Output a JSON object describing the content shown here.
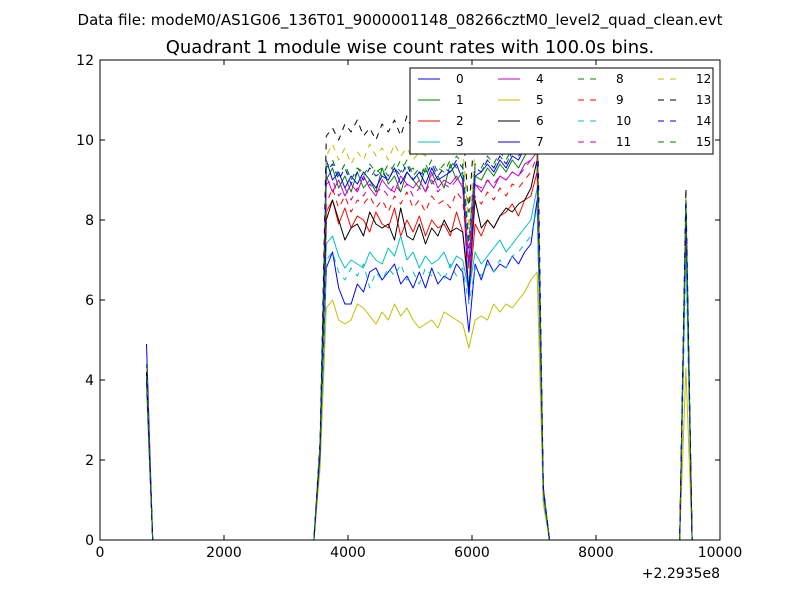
{
  "chart_data": {
    "type": "line",
    "suptitle": "Data file: modeM0/AS1G06_136T01_9000001148_08266cztM0_level2_quad_clean.evt",
    "title": "Quadrant 1 module wise count rates with 100.0s bins.",
    "xlabel": "",
    "ylabel": "",
    "x_offset_label": "+2.2935e8",
    "xlim": [
      0,
      10000
    ],
    "ylim": [
      0,
      12
    ],
    "xticks": [
      0,
      2000,
      4000,
      6000,
      8000,
      10000
    ],
    "yticks": [
      0,
      2,
      4,
      6,
      8,
      10,
      12
    ],
    "grid": false,
    "legend_position": "top-right",
    "legend_columns": 4,
    "x": [
      750,
      850,
      950,
      1050,
      3450,
      3550,
      3650,
      3750,
      3850,
      3950,
      4050,
      4150,
      4250,
      4350,
      4450,
      4550,
      4650,
      4750,
      4850,
      4950,
      5050,
      5150,
      5250,
      5350,
      5450,
      5550,
      5650,
      5750,
      5850,
      5950,
      6050,
      6150,
      6250,
      6350,
      6450,
      6550,
      6650,
      6750,
      6850,
      6950,
      7050,
      7150,
      7250,
      7350,
      9350,
      9450,
      9550
    ],
    "series": [
      {
        "name": "0",
        "color": "#0000ff",
        "dash": false,
        "values": [
          4.9,
          0,
          0,
          0,
          0,
          2.0,
          6.8,
          7.2,
          6.3,
          5.9,
          5.9,
          6.4,
          6.2,
          6.7,
          6.8,
          6.5,
          6.7,
          6.9,
          6.4,
          6.6,
          6.3,
          6.7,
          6.3,
          6.8,
          6.4,
          6.6,
          6.5,
          6.9,
          6.7,
          5.2,
          6.9,
          6.5,
          7.0,
          6.7,
          6.9,
          6.8,
          7.1,
          6.9,
          7.2,
          7.4,
          8.5,
          1.3,
          0,
          0,
          0,
          8.0,
          0
        ]
      },
      {
        "name": "1",
        "color": "#008000",
        "dash": false,
        "values": [
          4.4,
          0,
          0,
          0,
          0,
          2.3,
          9.0,
          9.3,
          8.8,
          9.1,
          8.7,
          9.2,
          8.8,
          9.0,
          8.7,
          9.3,
          8.9,
          9.1,
          8.7,
          9.2,
          9.0,
          8.8,
          9.3,
          8.9,
          9.1,
          8.8,
          9.4,
          9.0,
          9.2,
          6.8,
          9.1,
          9.0,
          9.3,
          9.1,
          9.4,
          9.2,
          9.5,
          9.3,
          9.6,
          9.8,
          10.0,
          1.2,
          0,
          0,
          0,
          8.3,
          0
        ]
      },
      {
        "name": "2",
        "color": "#ff0000",
        "dash": false,
        "values": [
          4.2,
          0,
          0,
          0,
          0,
          2.2,
          8.2,
          8.5,
          7.9,
          8.3,
          7.8,
          8.1,
          8.0,
          7.7,
          8.2,
          7.9,
          7.8,
          8.3,
          7.6,
          8.0,
          7.7,
          8.1,
          7.6,
          8.0,
          7.8,
          7.9,
          7.6,
          8.2,
          7.7,
          6.1,
          7.9,
          7.6,
          8.0,
          7.8,
          8.1,
          8.2,
          8.4,
          8.1,
          8.5,
          8.6,
          9.2,
          1.2,
          0,
          0,
          0,
          8.1,
          0
        ]
      },
      {
        "name": "3",
        "color": "#00bfbf",
        "dash": false,
        "values": [
          4.0,
          0,
          0,
          0,
          0,
          2.1,
          7.4,
          7.6,
          7.1,
          6.8,
          7.0,
          6.9,
          6.8,
          7.2,
          7.0,
          6.9,
          7.3,
          7.1,
          7.6,
          7.0,
          7.2,
          6.8,
          7.1,
          6.9,
          7.0,
          7.2,
          6.8,
          7.1,
          7.0,
          6.2,
          7.2,
          6.9,
          7.1,
          7.3,
          7.5,
          7.2,
          7.4,
          7.6,
          7.8,
          8.0,
          8.8,
          1.1,
          0,
          0,
          0,
          7.6,
          0
        ]
      },
      {
        "name": "4",
        "color": "#bf00bf",
        "dash": false,
        "values": [
          4.3,
          0,
          0,
          0,
          0,
          2.2,
          9.1,
          8.7,
          9.0,
          8.6,
          8.9,
          8.7,
          9.1,
          8.8,
          8.6,
          9.0,
          8.8,
          8.7,
          9.1,
          8.9,
          8.8,
          9.0,
          8.7,
          9.2,
          8.8,
          9.0,
          8.9,
          9.1,
          8.8,
          6.9,
          8.9,
          8.7,
          9.0,
          8.8,
          9.1,
          9.0,
          9.2,
          9.1,
          9.4,
          9.5,
          9.7,
          1.2,
          0,
          0,
          0,
          8.2,
          0
        ]
      },
      {
        "name": "5",
        "color": "#bfbf00",
        "dash": false,
        "values": [
          3.8,
          0,
          0,
          0,
          0,
          1.8,
          5.8,
          6.0,
          5.5,
          5.4,
          5.5,
          5.9,
          5.8,
          5.6,
          5.4,
          5.7,
          5.5,
          5.9,
          5.6,
          5.8,
          5.5,
          5.3,
          5.4,
          5.5,
          5.3,
          5.7,
          5.6,
          5.5,
          5.4,
          4.8,
          5.5,
          5.6,
          5.5,
          5.9,
          5.7,
          5.9,
          5.8,
          6.0,
          6.2,
          6.5,
          6.7,
          0.9,
          0,
          0,
          0,
          4.3,
          0
        ]
      },
      {
        "name": "6",
        "color": "#000000",
        "dash": false,
        "values": [
          4.1,
          0,
          0,
          0,
          0,
          2.2,
          8.0,
          8.5,
          8.0,
          7.5,
          7.8,
          7.9,
          7.6,
          8.2,
          7.9,
          7.8,
          7.9,
          7.5,
          8.3,
          7.6,
          7.5,
          7.9,
          7.4,
          7.8,
          7.6,
          8.0,
          7.7,
          7.8,
          7.7,
          6.3,
          8.5,
          7.8,
          8.0,
          7.8,
          8.1,
          8.3,
          8.2,
          8.4,
          8.5,
          8.8,
          9.5,
          1.2,
          0,
          0,
          0,
          8.1,
          0
        ]
      },
      {
        "name": "7",
        "color": "#0000ff",
        "dash": false,
        "values": [
          4.3,
          0,
          0,
          0,
          0,
          2.3,
          9.5,
          9.0,
          9.2,
          8.8,
          9.1,
          8.9,
          9.2,
          9.0,
          8.8,
          9.1,
          9.0,
          9.3,
          8.9,
          9.2,
          9.0,
          9.2,
          8.9,
          9.3,
          9.0,
          9.1,
          9.2,
          9.4,
          9.0,
          6.0,
          9.1,
          9.2,
          9.4,
          9.2,
          9.5,
          9.3,
          9.6,
          9.5,
          9.8,
          10.0,
          10.3,
          1.3,
          0,
          0,
          0,
          8.4,
          0
        ]
      },
      {
        "name": "8",
        "color": "#008000",
        "dash": true,
        "values": [
          4.1,
          0,
          0,
          0,
          0,
          2.4,
          9.3,
          9.5,
          9.1,
          9.4,
          9.0,
          9.3,
          9.2,
          9.0,
          9.3,
          9.1,
          9.4,
          9.2,
          9.5,
          9.2,
          9.3,
          9.0,
          9.4,
          9.1,
          9.3,
          9.2,
          9.5,
          9.3,
          9.4,
          7.5,
          9.3,
          9.2,
          9.5,
          9.3,
          9.6,
          9.4,
          9.7,
          9.6,
          9.8,
          10.0,
          10.3,
          1.3,
          0,
          0,
          0,
          8.5,
          0
        ]
      },
      {
        "name": "9",
        "color": "#ff0000",
        "dash": true,
        "values": [
          4.2,
          0,
          0,
          0,
          0,
          2.1,
          8.4,
          8.8,
          8.3,
          8.6,
          8.2,
          8.5,
          8.4,
          8.6,
          8.3,
          8.5,
          8.2,
          8.6,
          8.4,
          8.7,
          8.3,
          8.5,
          8.2,
          8.6,
          8.4,
          8.5,
          8.3,
          8.7,
          8.5,
          6.8,
          8.6,
          8.4,
          8.7,
          8.5,
          8.8,
          8.6,
          8.9,
          8.8,
          9.0,
          9.2,
          9.6,
          1.2,
          0,
          0,
          0,
          8.2,
          0
        ]
      },
      {
        "name": "10",
        "color": "#00bfbf",
        "dash": true,
        "values": [
          3.9,
          0,
          0,
          0,
          0,
          2.0,
          7.0,
          7.2,
          6.7,
          6.5,
          6.8,
          6.6,
          6.9,
          6.3,
          6.7,
          6.5,
          6.8,
          6.6,
          6.9,
          6.5,
          6.7,
          6.4,
          6.8,
          6.6,
          6.7,
          6.5,
          6.9,
          6.6,
          6.8,
          5.9,
          6.8,
          6.6,
          6.9,
          6.7,
          7.0,
          6.8,
          7.1,
          7.2,
          7.4,
          7.6,
          8.3,
          1.0,
          0,
          0,
          0,
          7.0,
          0
        ]
      },
      {
        "name": "11",
        "color": "#bf00bf",
        "dash": true,
        "values": [
          4.2,
          0,
          0,
          0,
          0,
          2.2,
          8.9,
          9.0,
          8.6,
          8.8,
          8.5,
          8.8,
          8.6,
          8.9,
          8.7,
          8.8,
          8.6,
          8.9,
          8.7,
          8.9,
          8.6,
          8.8,
          8.7,
          9.0,
          8.7,
          8.9,
          8.8,
          9.0,
          8.9,
          7.0,
          8.9,
          8.8,
          9.0,
          8.9,
          9.1,
          9.0,
          9.2,
          9.1,
          9.3,
          9.5,
          9.7,
          1.2,
          0,
          0,
          0,
          8.3,
          0
        ]
      },
      {
        "name": "12",
        "color": "#bfbf00",
        "dash": true,
        "values": [
          4.3,
          0,
          0,
          0,
          0,
          2.4,
          9.6,
          9.9,
          9.5,
          9.8,
          9.4,
          9.7,
          9.5,
          9.9,
          9.6,
          9.8,
          9.5,
          9.9,
          9.6,
          9.8,
          9.5,
          9.7,
          9.6,
          9.9,
          9.6,
          9.8,
          9.7,
          10.0,
          9.8,
          7.8,
          9.8,
          9.7,
          10.0,
          9.8,
          10.1,
          9.9,
          10.2,
          10.1,
          10.3,
          10.5,
          10.7,
          1.3,
          0,
          0,
          0,
          8.6,
          0
        ]
      },
      {
        "name": "13",
        "color": "#000000",
        "dash": true,
        "values": [
          4.2,
          0,
          0,
          0,
          0,
          2.5,
          10.1,
          10.3,
          10.0,
          10.4,
          10.2,
          10.5,
          10.1,
          10.3,
          10.0,
          10.4,
          10.2,
          10.5,
          10.1,
          10.6,
          10.2,
          10.4,
          10.1,
          10.5,
          10.2,
          10.4,
          10.3,
          10.6,
          10.4,
          8.2,
          10.5,
          10.3,
          10.6,
          10.4,
          10.7,
          10.5,
          10.8,
          10.7,
          10.9,
          11.1,
          11.3,
          1.3,
          0,
          0,
          0,
          8.8,
          0
        ]
      },
      {
        "name": "14",
        "color": "#0000ff",
        "dash": true,
        "values": [
          4.0,
          0,
          0,
          0,
          0,
          2.3,
          9.2,
          9.4,
          9.0,
          9.3,
          8.9,
          9.2,
          9.0,
          9.3,
          9.1,
          9.2,
          9.0,
          9.3,
          9.1,
          9.4,
          9.0,
          9.2,
          9.1,
          9.4,
          9.1,
          9.3,
          9.2,
          9.5,
          9.3,
          7.3,
          9.3,
          9.2,
          9.5,
          9.3,
          9.6,
          9.4,
          9.7,
          9.6,
          9.8,
          10.0,
          10.2,
          1.3,
          0,
          0,
          0,
          8.4,
          0
        ]
      },
      {
        "name": "15",
        "color": "#008000",
        "dash": true,
        "values": [
          4.1,
          0,
          0,
          0,
          0,
          2.4,
          9.3,
          9.5,
          9.1,
          9.4,
          9.0,
          9.3,
          9.1,
          9.4,
          9.2,
          9.3,
          9.1,
          9.4,
          9.2,
          9.5,
          9.1,
          9.3,
          9.2,
          9.5,
          9.2,
          9.4,
          9.3,
          9.6,
          9.4,
          7.4,
          9.4,
          9.3,
          9.6,
          9.4,
          9.7,
          9.5,
          9.8,
          9.7,
          9.9,
          10.1,
          10.4,
          1.3,
          0,
          0,
          0,
          8.5,
          0
        ]
      }
    ]
  }
}
